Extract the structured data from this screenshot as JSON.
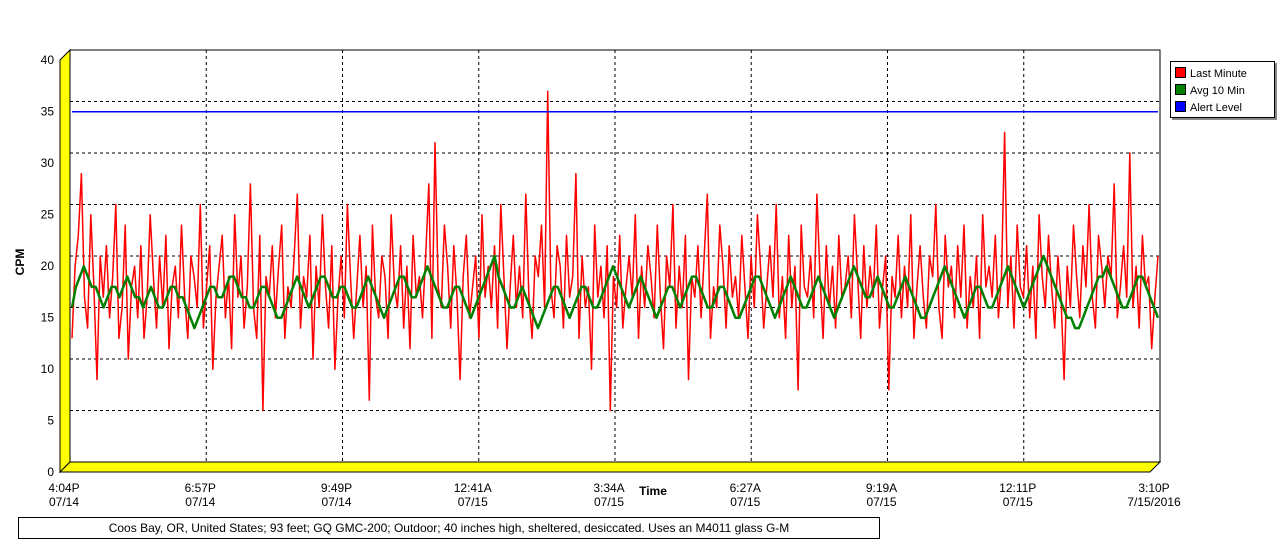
{
  "chart_data": {
    "type": "line",
    "ylabel": "CPM",
    "xlabel": "Time",
    "ylim": [
      0,
      40
    ],
    "yticks": [
      0,
      5,
      10,
      15,
      20,
      25,
      30,
      35,
      40
    ],
    "xticks": [
      {
        "time": "4:04P",
        "date": "07/14"
      },
      {
        "time": "6:57P",
        "date": "07/14"
      },
      {
        "time": "9:49P",
        "date": "07/14"
      },
      {
        "time": "12:41A",
        "date": "07/15"
      },
      {
        "time": "3:34A",
        "date": "07/15"
      },
      {
        "time": "6:27A",
        "date": "07/15"
      },
      {
        "time": "9:19A",
        "date": "07/15"
      },
      {
        "time": "12:11P",
        "date": "07/15"
      },
      {
        "time": "3:10P",
        "date": "7/15/2016"
      }
    ],
    "grid": true,
    "legend_position": "right",
    "alert_level": 34,
    "series": [
      {
        "name": "Last Minute",
        "color": "#ff0000",
        "values": [
          12,
          19,
          22,
          28,
          16,
          13,
          24,
          17,
          8,
          20,
          16,
          21,
          14,
          18,
          25,
          12,
          15,
          23,
          10,
          17,
          19,
          14,
          21,
          12,
          16,
          24,
          18,
          13,
          20,
          15,
          22,
          11,
          17,
          19,
          14,
          23,
          16,
          12,
          20,
          18,
          15,
          25,
          13,
          17,
          21,
          9,
          16,
          19,
          22,
          14,
          18,
          11,
          24,
          16,
          20,
          13,
          17,
          27,
          15,
          12,
          22,
          5,
          18,
          16,
          21,
          14,
          19,
          23,
          12,
          17,
          15,
          20,
          26,
          13,
          18,
          16,
          22,
          10,
          19,
          15,
          24,
          17,
          13,
          21,
          9,
          16,
          20,
          14,
          25,
          18,
          12,
          17,
          22,
          15,
          19,
          6,
          23,
          16,
          14,
          20,
          18,
          12,
          24,
          17,
          15,
          21,
          13,
          19,
          11,
          22,
          16,
          18,
          14,
          20,
          27,
          12,
          31,
          17,
          15,
          23,
          19,
          13,
          21,
          16,
          8,
          18,
          22,
          14,
          17,
          20,
          12,
          24,
          16,
          19,
          15,
          21,
          13,
          25,
          18,
          11,
          17,
          22,
          15,
          19,
          14,
          26,
          16,
          12,
          20,
          18,
          23,
          15,
          36,
          17,
          14,
          21,
          19,
          13,
          22,
          16,
          18,
          28,
          12,
          20,
          15,
          17,
          9,
          23,
          16,
          19,
          14,
          21,
          5,
          18,
          15,
          22,
          13,
          17,
          20,
          16,
          24,
          12,
          19,
          15,
          21,
          18,
          14,
          23,
          16,
          11,
          20,
          17,
          25,
          13,
          19,
          15,
          22,
          8,
          18,
          16,
          21,
          14,
          20,
          26,
          12,
          17,
          15,
          23,
          19,
          13,
          21,
          16,
          18,
          14,
          22,
          17,
          12,
          20,
          15,
          24,
          19,
          13,
          17,
          21,
          16,
          25,
          14,
          18,
          12,
          22,
          15,
          19,
          7,
          23,
          17,
          16,
          20,
          14,
          26,
          18,
          12,
          21,
          15,
          19,
          13,
          22,
          16,
          17,
          20,
          14,
          24,
          18,
          12,
          21,
          15,
          19,
          16,
          23,
          13,
          17,
          20,
          7,
          18,
          16,
          22,
          14,
          19,
          15,
          24,
          12,
          17,
          21,
          16,
          13,
          20,
          18,
          25,
          15,
          12,
          22,
          17,
          19,
          14,
          21,
          16,
          23,
          13,
          18,
          15,
          20,
          12,
          24,
          17,
          19,
          16,
          22,
          14,
          18,
          32,
          15,
          20,
          13,
          23,
          17,
          16,
          21,
          14,
          19,
          12,
          24,
          18,
          15,
          22,
          17,
          13,
          20,
          16,
          8,
          19,
          15,
          23,
          18,
          14,
          21,
          17,
          25,
          16,
          13,
          22,
          19,
          15,
          20,
          18,
          27,
          14,
          17,
          21,
          16,
          30,
          15,
          19,
          13,
          22,
          17,
          18,
          11,
          16,
          20
        ]
      },
      {
        "name": "Avg 10 Min",
        "color": "#008000",
        "values": [
          15,
          17,
          18,
          19,
          18,
          17,
          17,
          16,
          15,
          16,
          17,
          17,
          16,
          17,
          18,
          17,
          16,
          16,
          15,
          16,
          17,
          16,
          15,
          15,
          16,
          17,
          17,
          16,
          16,
          15,
          14,
          13,
          14,
          15,
          16,
          17,
          17,
          16,
          16,
          17,
          18,
          18,
          17,
          16,
          16,
          15,
          15,
          16,
          17,
          17,
          16,
          15,
          14,
          14,
          15,
          16,
          17,
          18,
          17,
          16,
          15,
          16,
          17,
          18,
          18,
          17,
          16,
          16,
          17,
          17,
          16,
          15,
          15,
          16,
          17,
          18,
          17,
          16,
          15,
          14,
          15,
          16,
          17,
          18,
          18,
          17,
          16,
          16,
          17,
          18,
          19,
          18,
          17,
          16,
          15,
          15,
          16,
          17,
          17,
          16,
          15,
          14,
          15,
          16,
          17,
          18,
          19,
          20,
          18,
          17,
          16,
          15,
          15,
          16,
          17,
          16,
          15,
          14,
          13,
          14,
          15,
          16,
          17,
          17,
          16,
          15,
          14,
          15,
          16,
          17,
          17,
          16,
          15,
          15,
          16,
          17,
          18,
          19,
          18,
          17,
          16,
          15,
          16,
          17,
          18,
          17,
          16,
          15,
          14,
          15,
          16,
          17,
          17,
          16,
          15,
          16,
          17,
          18,
          18,
          17,
          16,
          15,
          15,
          16,
          17,
          17,
          16,
          15,
          14,
          14,
          15,
          16,
          17,
          18,
          18,
          17,
          16,
          15,
          14,
          15,
          16,
          17,
          18,
          17,
          16,
          15,
          15,
          16,
          17,
          18,
          17,
          16,
          15,
          14,
          15,
          16,
          17,
          18,
          19,
          18,
          17,
          16,
          16,
          17,
          18,
          17,
          16,
          15,
          15,
          16,
          17,
          18,
          17,
          16,
          15,
          14,
          14,
          15,
          16,
          17,
          18,
          19,
          18,
          17,
          16,
          15,
          14,
          15,
          16,
          17,
          17,
          16,
          15,
          15,
          16,
          17,
          18,
          19,
          18,
          17,
          16,
          15,
          16,
          17,
          18,
          19,
          20,
          19,
          18,
          17,
          16,
          15,
          14,
          14,
          13,
          13,
          14,
          15,
          16,
          17,
          18,
          18,
          19,
          18,
          17,
          16,
          15,
          15,
          16,
          17,
          18,
          18,
          17,
          16,
          15,
          14
        ]
      },
      {
        "name": "Alert Level",
        "color": "#0000ff",
        "values": [
          34,
          34
        ]
      }
    ]
  },
  "legend": {
    "items": [
      {
        "label": "Last Minute",
        "color": "#ff0000"
      },
      {
        "label": "Avg 10 Min",
        "color": "#008000"
      },
      {
        "label": "Alert Level",
        "color": "#0000ff"
      }
    ]
  },
  "caption": "Coos Bay, OR, United States; 93 feet; GQ GMC-200; Outdoor; 40 inches high, sheltered, desiccated. Uses an M4011 glass G-M"
}
